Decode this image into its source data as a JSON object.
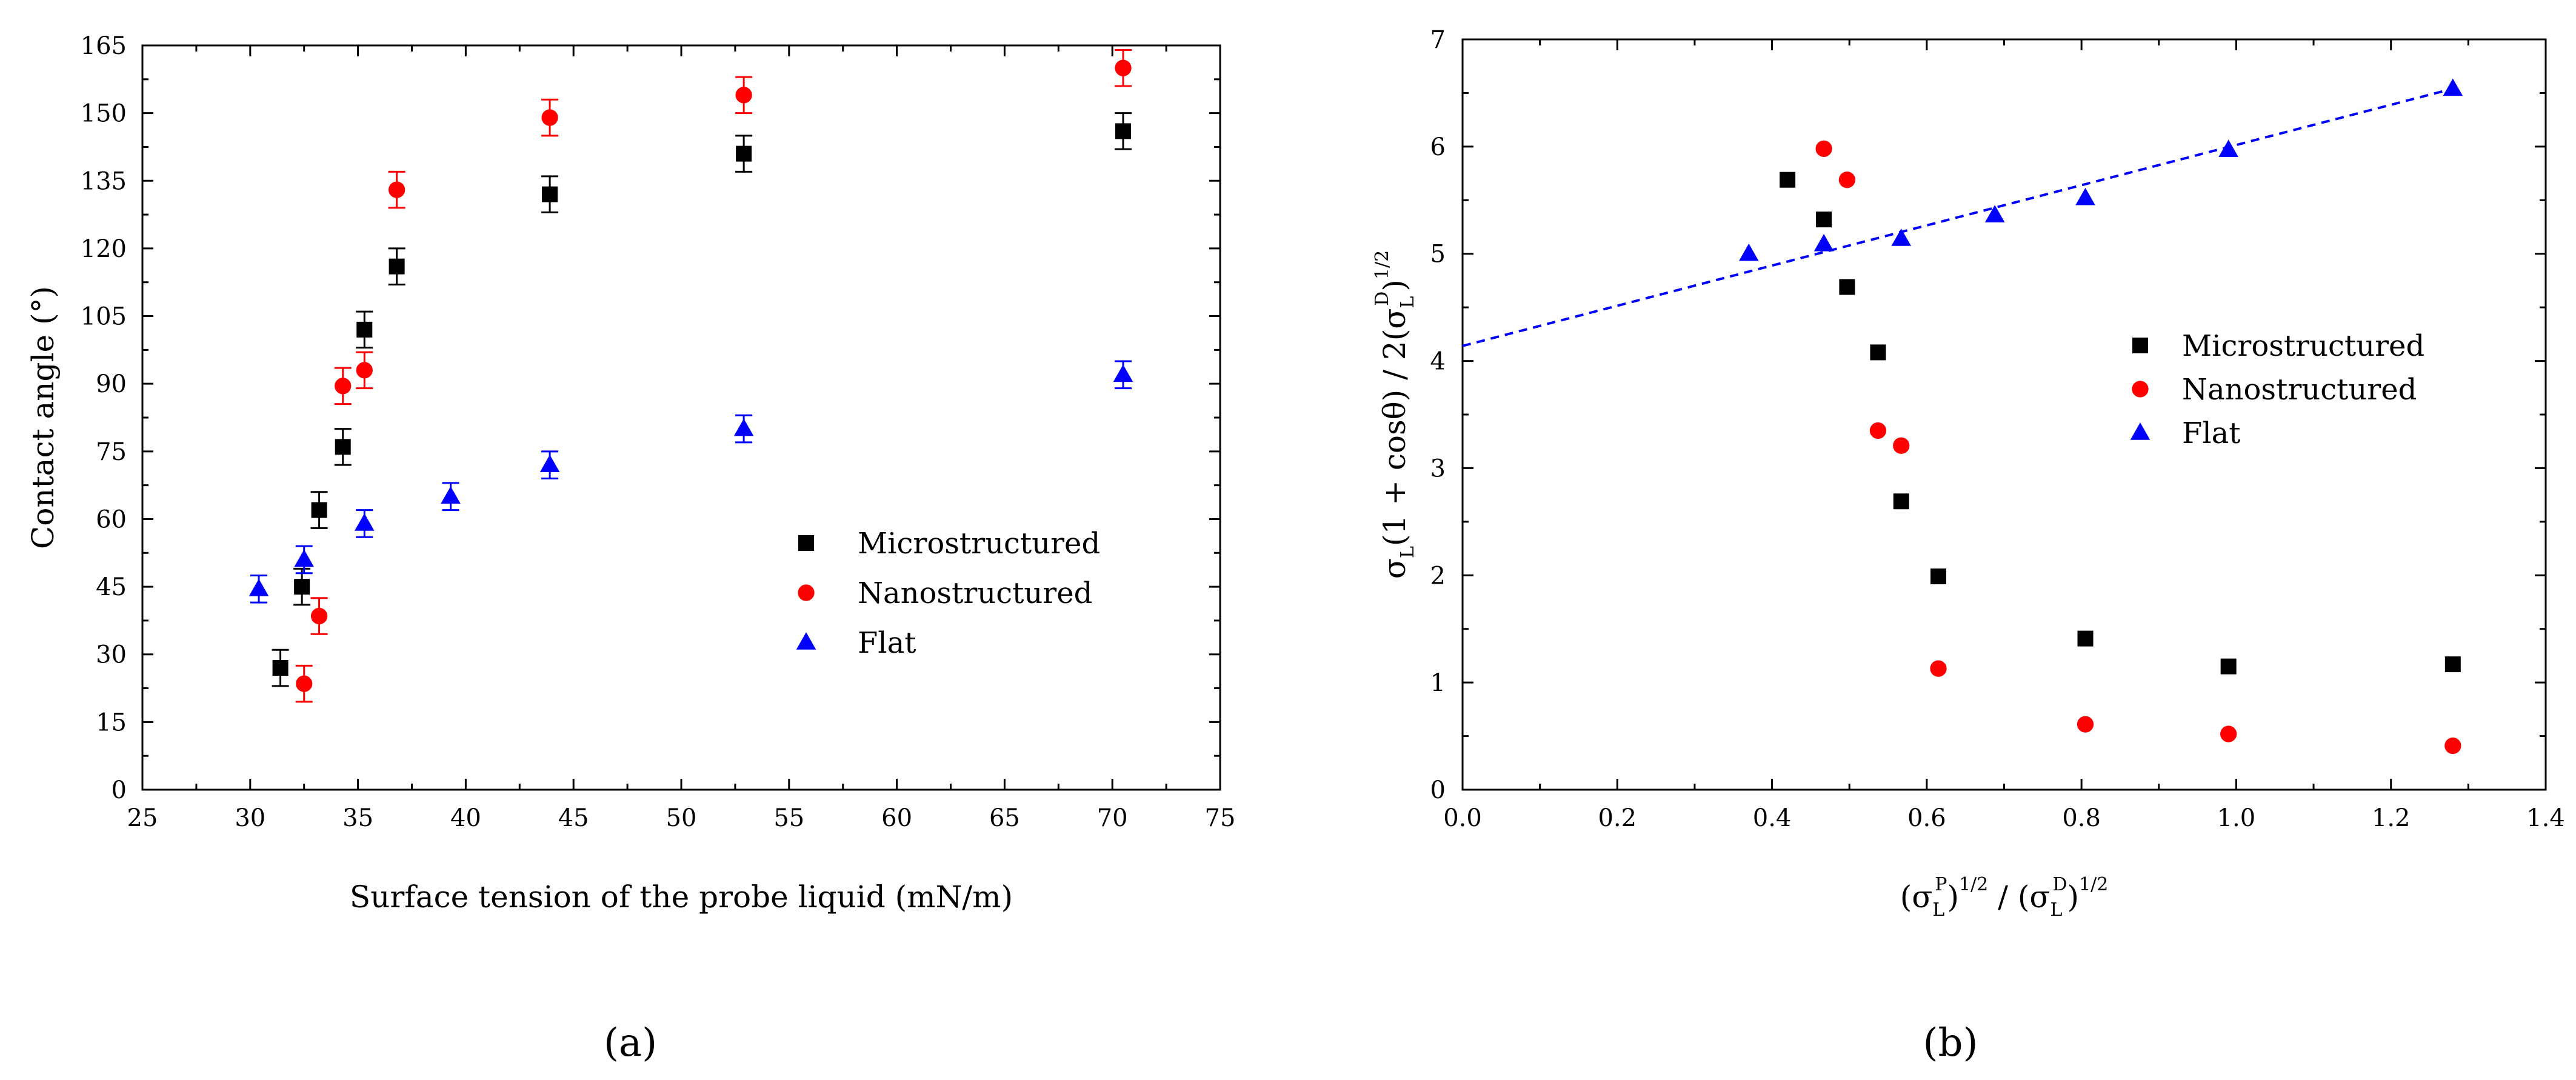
{
  "panels": [
    "(a)",
    "(b)"
  ],
  "chart_data": [
    {
      "id": "a",
      "type": "scatter",
      "title": "",
      "xlabel": "Surface tension of the probe liquid (mN/m)",
      "ylabel": "Contact angle (°)",
      "xlim": [
        25,
        75
      ],
      "ylim": [
        0,
        165
      ],
      "xticks": [
        25,
        30,
        35,
        40,
        45,
        50,
        55,
        60,
        65,
        70,
        75
      ],
      "yticks": [
        0,
        15,
        30,
        45,
        60,
        75,
        90,
        105,
        120,
        135,
        150,
        165
      ],
      "grid": false,
      "legend_position": "center-right",
      "error_bars": true,
      "series": [
        {
          "name": "Microstructured",
          "marker": "square",
          "color": "#000000",
          "x": [
            31.4,
            32.4,
            33.2,
            34.3,
            35.3,
            36.8,
            43.9,
            52.9,
            70.5
          ],
          "y": [
            27,
            45,
            62,
            76,
            102,
            116,
            132,
            141,
            146
          ],
          "err": [
            4,
            4,
            4,
            4,
            4,
            4,
            4,
            4,
            4
          ]
        },
        {
          "name": "Nanostructured",
          "marker": "circle",
          "color": "#ff0000",
          "x": [
            32.5,
            33.2,
            34.3,
            35.3,
            36.8,
            43.9,
            52.9,
            70.5
          ],
          "y": [
            23.5,
            38.5,
            89.5,
            93,
            133,
            149,
            154,
            160
          ],
          "err": [
            4,
            4,
            4,
            4,
            4,
            4,
            4,
            4
          ]
        },
        {
          "name": "Flat",
          "marker": "triangle",
          "color": "#0000ff",
          "x": [
            30.4,
            32.5,
            35.3,
            39.3,
            43.9,
            52.9,
            70.5
          ],
          "y": [
            44.5,
            51,
            59,
            65,
            72,
            80,
            92
          ],
          "err": [
            3,
            3,
            3,
            3,
            3,
            3,
            3
          ]
        }
      ]
    },
    {
      "id": "b",
      "type": "scatter",
      "title": "",
      "xlabel_parts": [
        "(σ",
        "L",
        "P",
        ")",
        "1/2",
        " / (σ",
        "L",
        "D",
        ")",
        "1/2"
      ],
      "ylabel_parts": [
        "σ",
        "L",
        "(1 + cosθ) / 2(σ",
        "L",
        "D",
        ")",
        "1/2"
      ],
      "xlim": [
        0.0,
        1.4
      ],
      "ylim": [
        0,
        7
      ],
      "xticks": [
        "0.0",
        "0.2",
        "0.4",
        "0.6",
        "0.8",
        "1.0",
        "1.2",
        "1.4"
      ],
      "yticks": [
        "0",
        "1",
        "2",
        "3",
        "4",
        "5",
        "6",
        "7"
      ],
      "grid": false,
      "legend_position": "center-right",
      "series": [
        {
          "name": "Microstructured",
          "marker": "square",
          "color": "#000000",
          "x": [
            0.42,
            0.467,
            0.497,
            0.537,
            0.567,
            0.615,
            0.805,
            0.99,
            1.28
          ],
          "y": [
            5.69,
            5.32,
            4.69,
            4.08,
            2.69,
            1.99,
            1.41,
            1.15,
            1.17
          ]
        },
        {
          "name": "Nanostructured",
          "marker": "circle",
          "color": "#ff0000",
          "x": [
            0.467,
            0.497,
            0.537,
            0.567,
            0.615,
            0.805,
            0.99,
            1.28
          ],
          "y": [
            5.98,
            5.69,
            3.35,
            3.21,
            1.13,
            0.61,
            0.52,
            0.41
          ]
        },
        {
          "name": "Flat",
          "marker": "triangle",
          "color": "#0000ff",
          "x": [
            0.37,
            0.467,
            0.567,
            0.688,
            0.805,
            0.99,
            1.28
          ],
          "y": [
            5.0,
            5.09,
            5.14,
            5.36,
            5.52,
            5.97,
            6.54
          ]
        }
      ],
      "fit_line": {
        "type": "linear",
        "color": "#0000ff",
        "style": "dashed",
        "x": [
          0.0,
          1.28
        ],
        "y": [
          4.14,
          6.54
        ]
      }
    }
  ]
}
